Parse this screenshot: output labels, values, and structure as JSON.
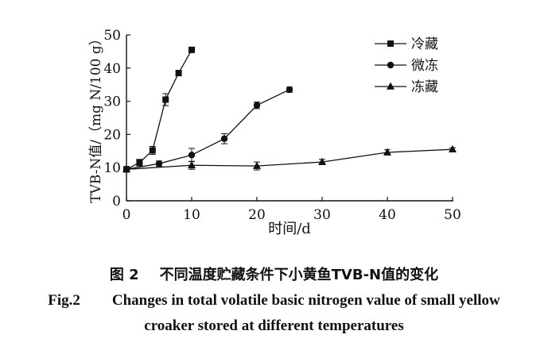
{
  "chart_data": {
    "type": "line",
    "xlabel": "时间/d",
    "ylabel": "TVB-N值/（mg N/100 g）",
    "xlim": [
      0,
      50
    ],
    "ylim": [
      0,
      50
    ],
    "xticks": [
      0,
      10,
      20,
      30,
      40,
      50
    ],
    "yticks": [
      0,
      10,
      20,
      30,
      40,
      50
    ],
    "grid": false,
    "legend_position": "top-right",
    "series": [
      {
        "name": "冷藏",
        "marker": "square",
        "x": [
          0,
          2,
          4,
          6,
          8,
          10
        ],
        "y": [
          9.5,
          11.5,
          15.2,
          30.5,
          38.5,
          45.5
        ],
        "err": [
          0.8,
          1.0,
          1.2,
          1.8,
          0.8,
          0.8
        ]
      },
      {
        "name": "微冻",
        "marker": "circle",
        "x": [
          0,
          5,
          10,
          15,
          20,
          25
        ],
        "y": [
          9.5,
          11.2,
          13.8,
          18.7,
          28.8,
          33.5
        ],
        "err": [
          0.8,
          0.8,
          2.0,
          1.5,
          1.0,
          0.8
        ]
      },
      {
        "name": "冻藏",
        "marker": "triangle",
        "x": [
          0,
          10,
          20,
          30,
          40,
          50
        ],
        "y": [
          9.5,
          10.7,
          10.5,
          11.7,
          14.6,
          15.5
        ],
        "err": [
          0.8,
          1.2,
          1.2,
          0.8,
          0.8,
          0.5
        ]
      }
    ]
  },
  "caption": {
    "cn_number": "图 2",
    "cn_text": "不同温度贮藏条件下小黄鱼TVB-N值的变化",
    "en_number": "Fig.2",
    "en_line1": "Changes in total volatile basic nitrogen value of small yellow",
    "en_line2": "croaker stored at different temperatures"
  }
}
